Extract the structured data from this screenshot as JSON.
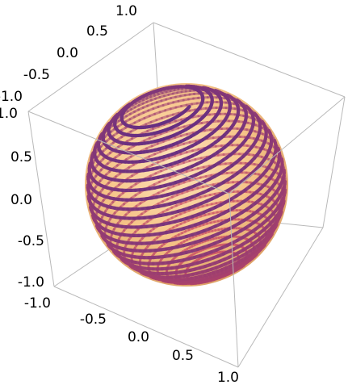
{
  "chart_data": {
    "type": "line",
    "title": "",
    "xlabel": "",
    "ylabel": "",
    "zlabel": "",
    "axes": {
      "x": {
        "range": [
          -1,
          1
        ],
        "ticks": [
          "-1.0",
          "-0.5",
          "0.0",
          "0.5",
          "1.0"
        ]
      },
      "y": {
        "range": [
          -1,
          1
        ],
        "ticks": [
          "-1.0",
          "-0.5",
          "0.0",
          "0.5",
          "1.0"
        ]
      },
      "z": {
        "range": [
          -1,
          1
        ],
        "ticks": [
          "-1.0",
          "-0.5",
          "0.0",
          "0.5",
          "1.0"
        ]
      }
    },
    "sphere": {
      "radius": 1,
      "center": [
        0,
        0,
        0
      ],
      "color": "#f2b46c",
      "opacity": 0.85
    },
    "curve": {
      "description_values": {
        "loops": 26,
        "tube_color_start": "#3b1f8f",
        "tube_color_end": "#d04b5a"
      }
    },
    "grid": false,
    "legend": "none"
  },
  "colors": {
    "box_edge": "#b9b9b9",
    "sphere_light": "#fde0b6",
    "sphere_dark": "#e49a55",
    "curve_dark": "#3b2390",
    "curve_light": "#c84a63"
  }
}
